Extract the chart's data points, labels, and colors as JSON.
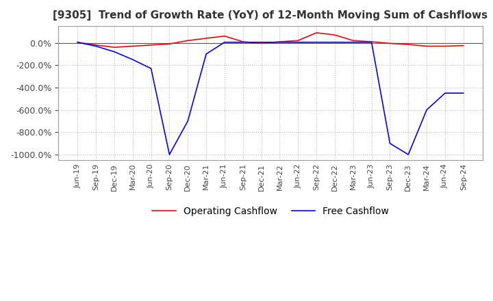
{
  "title": "[9305]  Trend of Growth Rate (YoY) of 12-Month Moving Sum of Cashflows",
  "title_fontsize": 11,
  "ylim": [
    -1050,
    150
  ],
  "yticks": [
    0,
    -200,
    -400,
    -600,
    -800,
    -1000
  ],
  "background_color": "#ffffff",
  "grid_color": "#bbbbbb",
  "operating_color": "#ff0000",
  "free_color": "#0000ff",
  "x_labels": [
    "Jun-19",
    "Sep-19",
    "Dec-19",
    "Mar-20",
    "Jun-20",
    "Sep-20",
    "Dec-20",
    "Mar-21",
    "Jun-21",
    "Sep-21",
    "Dec-21",
    "Mar-22",
    "Jun-22",
    "Sep-22",
    "Dec-22",
    "Mar-23",
    "Jun-23",
    "Sep-23",
    "Dec-23",
    "Mar-24",
    "Jun-24",
    "Sep-24"
  ],
  "operating_cashflow": [
    5,
    -20,
    -40,
    -30,
    -20,
    -10,
    20,
    40,
    60,
    10,
    -5,
    10,
    20,
    90,
    70,
    20,
    10,
    -5,
    -15,
    -30,
    -30,
    -25
  ],
  "free_cashflow": [
    5,
    -30,
    -80,
    -150,
    -230,
    -1000,
    -700,
    -100,
    5,
    5,
    5,
    5,
    5,
    5,
    5,
    5,
    5,
    -900,
    -1000,
    -600,
    -450,
    -450
  ],
  "legend_ncol": 2
}
